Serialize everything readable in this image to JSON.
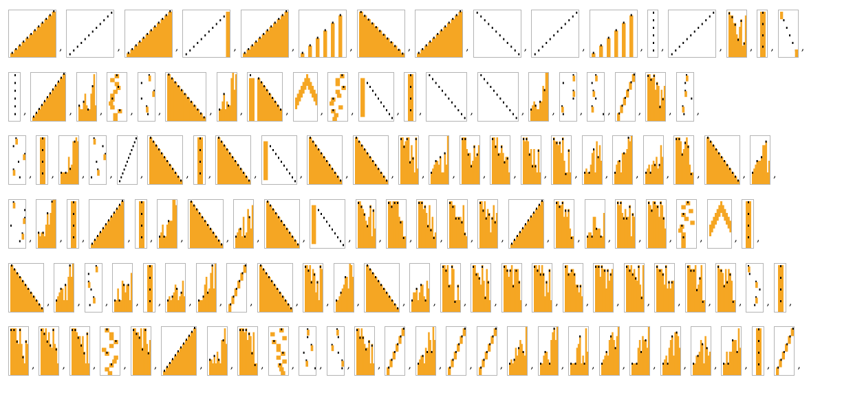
{
  "separator": ",",
  "colors": {
    "fill": "#f5a623",
    "dot": "#000000",
    "frame": "#b3b3b3",
    "background": "#ffffff"
  },
  "rows": [
    [
      "tri-up",
      "diag-up",
      "tri-up",
      "diag-up-bar",
      "tri-up",
      "bars-up",
      "tri-down",
      "tri-up",
      "diag-down",
      "diag-up",
      "bars-up",
      "dots-col",
      "diag-up",
      "tall-block",
      "tall-col",
      "diag-down-short"
    ],
    [
      "dots-col",
      "tri-up",
      "tall-steps",
      "blocky",
      "dots-zig",
      "tri-down",
      "tall-steps",
      "tri-down-bar",
      "v-shape",
      "blocky",
      "diag-down-bar",
      "tall-col",
      "diag-down",
      "diag-down",
      "tall-steps",
      "dots-zig",
      "dots-zig",
      "diag-up-steps",
      "tall-block",
      "dots-zig"
    ],
    [
      "dots-zig",
      "tall-col",
      "tall-steps",
      "dots-zig",
      "diag-up",
      "tri-down",
      "tall-col",
      "tri-down",
      "diag-down-bar",
      "tri-down",
      "tri-down",
      "tall-block",
      "tall-steps",
      "tall-block",
      "tall-block",
      "tall-block",
      "tall-block",
      "tall-steps",
      "tall-steps",
      "tall-steps",
      "tall-block",
      "tri-down",
      "tall-steps"
    ],
    [
      "dots-zig",
      "tall-steps",
      "tall-col",
      "tri-up",
      "tall-col",
      "tall-steps",
      "tri-down",
      "tall-steps",
      "tri-down",
      "diag-down-bar",
      "tall-block",
      "tall-block",
      "tall-block",
      "tall-block",
      "tall-block",
      "tri-up",
      "tall-block",
      "tall-steps",
      "tall-block",
      "tall-block",
      "blocky",
      "v-shape",
      "tall-col"
    ],
    [
      "tri-down",
      "tall-steps",
      "dots-zig",
      "tall-steps",
      "tall-col",
      "tall-steps",
      "tall-steps",
      "diag-up-steps",
      "tri-down",
      "tall-block",
      "tall-steps",
      "tri-down",
      "tall-steps",
      "tall-block",
      "tall-block",
      "tall-block",
      "tall-block",
      "tall-block",
      "tall-block",
      "tall-block",
      "tall-block",
      "tall-block",
      "tall-block",
      "dots-zig",
      "tall-col"
    ],
    [
      "tall-block",
      "tall-block",
      "tall-block",
      "blocky",
      "tall-block",
      "tri-up",
      "tall-steps",
      "tall-block",
      "blocky",
      "dots-zig",
      "dots-zig",
      "tall-block",
      "diag-up-steps",
      "tall-steps",
      "diag-up-steps",
      "diag-up-steps",
      "tall-steps",
      "tall-steps",
      "tall-steps",
      "tall-steps",
      "tall-steps",
      "tall-steps",
      "tall-steps",
      "tall-steps",
      "tall-col",
      "diag-up-steps"
    ]
  ]
}
